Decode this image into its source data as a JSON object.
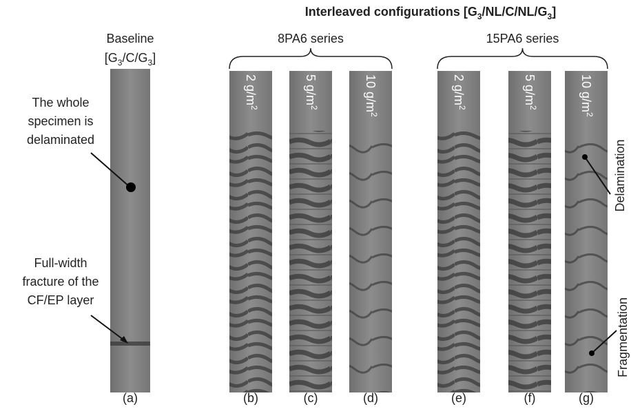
{
  "title_parts": [
    "Interleaved configurations [G",
    "3",
    "/NL/C/NL/G",
    "3",
    "]"
  ],
  "baseline": {
    "label": "Baseline",
    "config_parts": [
      "[G",
      "3",
      "/C/G",
      "3",
      "]"
    ],
    "panel": "(a)"
  },
  "annotations": {
    "whole": [
      "The whole",
      "specimen is",
      "delaminated"
    ],
    "fracture": [
      "Full-width",
      "fracture of the",
      "CF/EP layer"
    ],
    "delamination": "Delamination",
    "fragmentation": "Fragmentation"
  },
  "series": [
    {
      "name": "8PA6 series",
      "specimens": [
        {
          "grammage_parts": [
            "2 g/m",
            "2"
          ],
          "panel": "(b)"
        },
        {
          "grammage_parts": [
            "5 g/m",
            "2"
          ],
          "panel": "(c)"
        },
        {
          "grammage_parts": [
            "10 g/m",
            "2"
          ],
          "panel": "(d)"
        }
      ]
    },
    {
      "name": "15PA6 series",
      "specimens": [
        {
          "grammage_parts": [
            "2 g/m",
            "2"
          ],
          "panel": "(e)"
        },
        {
          "grammage_parts": [
            "5 g/m",
            "2"
          ],
          "panel": "(f)"
        },
        {
          "grammage_parts": [
            "10 g/m",
            "2"
          ],
          "panel": "(g)"
        }
      ]
    }
  ]
}
